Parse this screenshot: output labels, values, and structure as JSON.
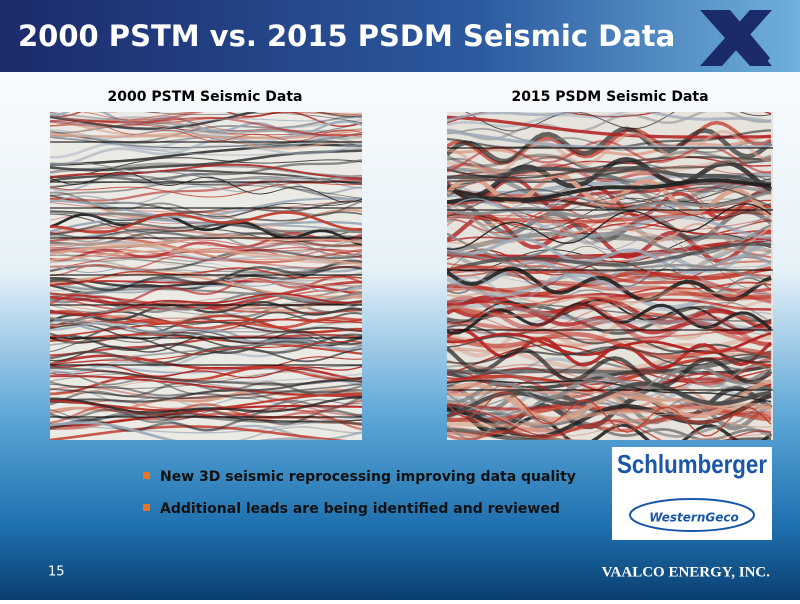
{
  "header": {
    "title": "2000 PSTM vs. 2015 PSDM Seismic Data"
  },
  "panels": [
    {
      "title": "2000 PSTM Seismic Data"
    },
    {
      "title": "2015 PSDM Seismic Data"
    }
  ],
  "bullets": [
    "New 3D seismic reprocessing improving data quality",
    "Additional leads are being identified and reviewed"
  ],
  "logo": {
    "name": "Schlumberger",
    "subsidiary": "WesternGeco"
  },
  "footer": {
    "page": "15",
    "company": "VAALCO ENERGY, INC."
  }
}
